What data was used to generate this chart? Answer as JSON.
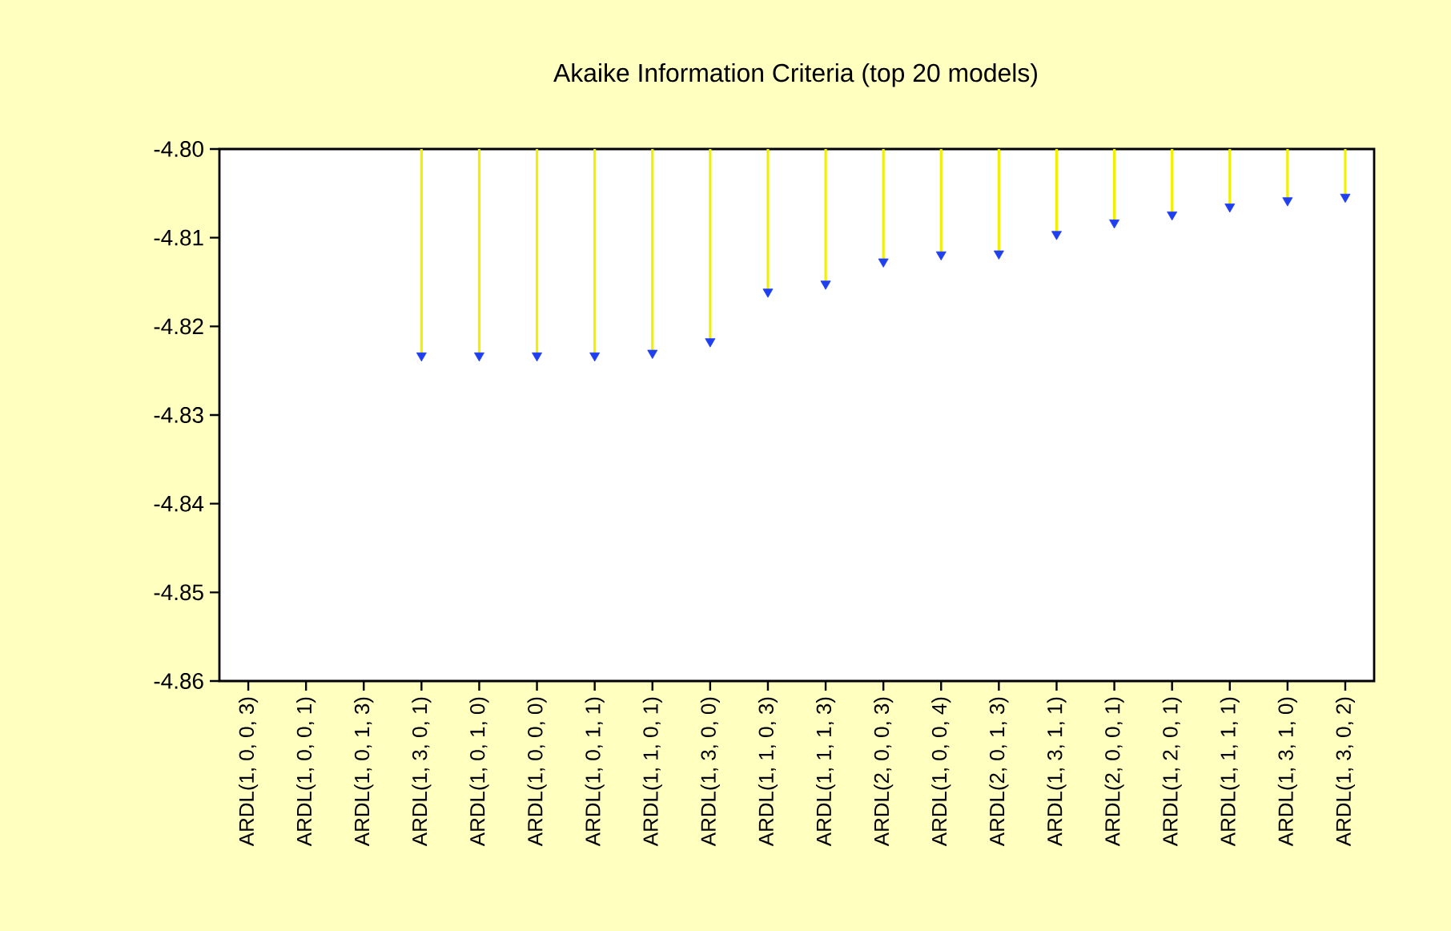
{
  "chart_data": {
    "type": "lollipop",
    "title": "Akaike Information Criteria (top 20 models)",
    "categories": [
      "ARDL(1, 0, 0, 3)",
      "ARDL(1, 0, 0, 1)",
      "ARDL(1, 0, 1, 3)",
      "ARDL(1, 3, 0, 1)",
      "ARDL(1, 0, 1, 0)",
      "ARDL(1, 0, 0, 0)",
      "ARDL(1, 0, 1, 1)",
      "ARDL(1, 1, 0, 1)",
      "ARDL(1, 3, 0, 0)",
      "ARDL(1, 1, 0, 3)",
      "ARDL(1, 1, 1, 3)",
      "ARDL(2, 0, 0, 3)",
      "ARDL(1, 0, 0, 4)",
      "ARDL(2, 0, 1, 3)",
      "ARDL(1, 3, 1, 1)",
      "ARDL(2, 0, 0, 1)",
      "ARDL(1, 2, 0, 1)",
      "ARDL(1, 1, 1, 1)",
      "ARDL(1, 3, 1, 0)",
      "ARDL(1, 3, 0, 2)"
    ],
    "series": [
      {
        "color": "#1f3ff0",
        "values": [
          null,
          null,
          null,
          -4.8233,
          -4.8233,
          -4.8233,
          -4.8233,
          -4.823,
          -4.8217,
          -4.8161,
          -4.8152,
          -4.8127,
          -4.8119,
          -4.8118,
          -4.8096,
          -4.8083,
          -4.8074,
          -4.8065,
          -4.8058,
          -4.8054
        ]
      }
    ],
    "ylim": [
      -4.86,
      -4.8
    ],
    "yticks": [
      {
        "value": -4.86,
        "label": "-4.86"
      },
      {
        "value": -4.85,
        "label": "-4.85"
      },
      {
        "value": -4.84,
        "label": "-4.84"
      },
      {
        "value": -4.83,
        "label": "-4.83"
      },
      {
        "value": -4.82,
        "label": "-4.82"
      },
      {
        "value": -4.81,
        "label": "-4.81"
      },
      {
        "value": -4.8,
        "label": "-4.80"
      }
    ],
    "marker": "triangle"
  }
}
